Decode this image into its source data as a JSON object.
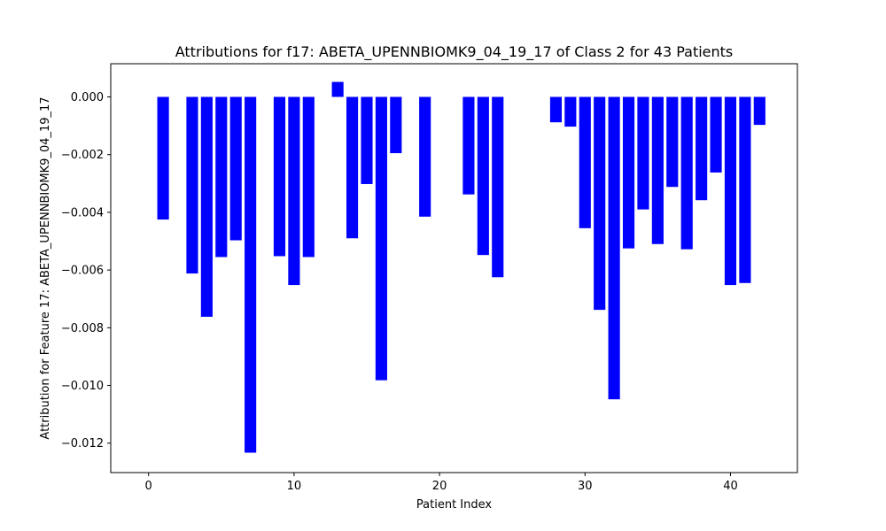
{
  "chart_data": {
    "type": "bar",
    "title": "Attributions for f17: ABETA_UPENNBIOMK9_04_19_17 of Class 2 for 43 Patients",
    "xlabel": "Patient Index",
    "ylabel": "Attribution for Feature 17: ABETA_UPENNBIOMK9_04_19_17",
    "bar_color": "#0000ff",
    "xlim": [
      -2.6,
      44.6
    ],
    "ylim": [
      -0.01302,
      0.00115
    ],
    "x_ticks": [
      0,
      10,
      20,
      30,
      40
    ],
    "y_ticks": [
      0.0,
      -0.002,
      -0.004,
      -0.006,
      -0.008,
      -0.01,
      -0.012
    ],
    "y_tick_labels": [
      "0.000",
      "−0.002",
      "−0.004",
      "−0.006",
      "−0.008",
      "−0.010",
      "−0.012"
    ],
    "grid": false,
    "x": [
      0,
      1,
      2,
      3,
      4,
      5,
      6,
      7,
      8,
      9,
      10,
      11,
      12,
      13,
      14,
      15,
      16,
      17,
      18,
      19,
      20,
      21,
      22,
      23,
      24,
      25,
      26,
      27,
      28,
      29,
      30,
      31,
      32,
      33,
      34,
      35,
      36,
      37,
      38,
      39,
      40,
      41,
      42
    ],
    "values": [
      0,
      -0.00425,
      0,
      -0.00612,
      -0.00762,
      -0.00555,
      -0.00497,
      -0.01233,
      0,
      -0.00552,
      -0.00652,
      -0.00555,
      0,
      0.00052,
      -0.0049,
      -0.00302,
      -0.00982,
      -0.00195,
      0,
      -0.00415,
      0,
      0,
      -0.00338,
      -0.00548,
      -0.00625,
      0,
      0,
      0,
      -0.00088,
      -0.00103,
      -0.00455,
      -0.00738,
      -0.01048,
      -0.00525,
      -0.0039,
      -0.0051,
      -0.00312,
      -0.00528,
      -0.00358,
      -0.00262,
      -0.00652,
      -0.00645,
      -0.00097
    ]
  }
}
